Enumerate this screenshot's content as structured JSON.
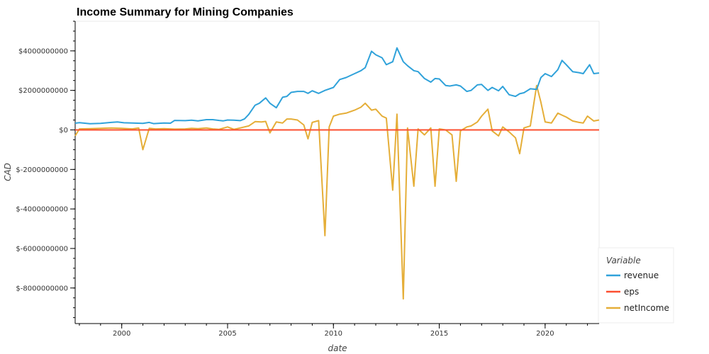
{
  "chart_data": {
    "type": "line",
    "title": "Income Summary for Mining Companies",
    "xlabel": "date",
    "ylabel": "CAD",
    "xlim": [
      1997.8,
      2022.55
    ],
    "ylim": [
      -9800000000,
      5500000000
    ],
    "x_ticks": [
      2000,
      2005,
      2010,
      2015,
      2020
    ],
    "x_tick_labels": [
      "2000",
      "2005",
      "2010",
      "2015",
      "2020"
    ],
    "y_ticks": [
      4000000000,
      2000000000,
      0,
      -2000000000,
      -4000000000,
      -6000000000,
      -8000000000
    ],
    "y_tick_labels": [
      "$4000000000",
      "$2000000000",
      "$0",
      "$-2000000000",
      "$-4000000000",
      "$-6000000000",
      "$-8000000000"
    ],
    "grid": false,
    "legend": {
      "title": "Variable",
      "position": "bottom-right"
    },
    "series": [
      {
        "name": "revenue",
        "color": "#30a2da",
        "points": [
          [
            1997.8,
            340000000
          ],
          [
            1998.0,
            370000000
          ],
          [
            1998.5,
            310000000
          ],
          [
            1999.0,
            330000000
          ],
          [
            1999.5,
            380000000
          ],
          [
            1999.8,
            400000000
          ],
          [
            2000.1,
            360000000
          ],
          [
            2000.5,
            350000000
          ],
          [
            2001.0,
            330000000
          ],
          [
            2001.3,
            380000000
          ],
          [
            2001.5,
            320000000
          ],
          [
            2002.0,
            350000000
          ],
          [
            2002.3,
            340000000
          ],
          [
            2002.5,
            480000000
          ],
          [
            2003.0,
            470000000
          ],
          [
            2003.3,
            490000000
          ],
          [
            2003.6,
            460000000
          ],
          [
            2004.0,
            520000000
          ],
          [
            2004.3,
            520000000
          ],
          [
            2004.6,
            480000000
          ],
          [
            2004.8,
            460000000
          ],
          [
            2005.0,
            500000000
          ],
          [
            2005.3,
            490000000
          ],
          [
            2005.6,
            470000000
          ],
          [
            2005.8,
            560000000
          ],
          [
            2006.0,
            780000000
          ],
          [
            2006.3,
            1250000000
          ],
          [
            2006.5,
            1350000000
          ],
          [
            2006.8,
            1620000000
          ],
          [
            2007.0,
            1350000000
          ],
          [
            2007.3,
            1120000000
          ],
          [
            2007.6,
            1650000000
          ],
          [
            2007.8,
            1700000000
          ],
          [
            2008.0,
            1900000000
          ],
          [
            2008.3,
            1950000000
          ],
          [
            2008.6,
            1950000000
          ],
          [
            2008.8,
            1850000000
          ],
          [
            2009.0,
            1980000000
          ],
          [
            2009.3,
            1850000000
          ],
          [
            2009.6,
            2000000000
          ],
          [
            2010.0,
            2150000000
          ],
          [
            2010.3,
            2550000000
          ],
          [
            2010.6,
            2650000000
          ],
          [
            2011.0,
            2850000000
          ],
          [
            2011.3,
            3000000000
          ],
          [
            2011.5,
            3150000000
          ],
          [
            2011.8,
            3980000000
          ],
          [
            2012.0,
            3800000000
          ],
          [
            2012.3,
            3650000000
          ],
          [
            2012.5,
            3300000000
          ],
          [
            2012.8,
            3450000000
          ],
          [
            2013.0,
            4150000000
          ],
          [
            2013.3,
            3450000000
          ],
          [
            2013.5,
            3250000000
          ],
          [
            2013.8,
            3000000000
          ],
          [
            2014.0,
            2950000000
          ],
          [
            2014.3,
            2600000000
          ],
          [
            2014.6,
            2420000000
          ],
          [
            2014.8,
            2600000000
          ],
          [
            2015.0,
            2580000000
          ],
          [
            2015.3,
            2250000000
          ],
          [
            2015.5,
            2220000000
          ],
          [
            2015.8,
            2280000000
          ],
          [
            2016.0,
            2220000000
          ],
          [
            2016.3,
            1950000000
          ],
          [
            2016.5,
            2000000000
          ],
          [
            2016.8,
            2280000000
          ],
          [
            2017.0,
            2300000000
          ],
          [
            2017.3,
            2000000000
          ],
          [
            2017.5,
            2150000000
          ],
          [
            2017.8,
            1980000000
          ],
          [
            2018.0,
            2200000000
          ],
          [
            2018.3,
            1780000000
          ],
          [
            2018.6,
            1700000000
          ],
          [
            2018.8,
            1830000000
          ],
          [
            2019.0,
            1880000000
          ],
          [
            2019.3,
            2080000000
          ],
          [
            2019.6,
            2050000000
          ],
          [
            2019.8,
            2650000000
          ],
          [
            2020.0,
            2850000000
          ],
          [
            2020.3,
            2700000000
          ],
          [
            2020.6,
            3050000000
          ],
          [
            2020.8,
            3520000000
          ],
          [
            2021.0,
            3300000000
          ],
          [
            2021.3,
            2950000000
          ],
          [
            2021.6,
            2900000000
          ],
          [
            2021.8,
            2850000000
          ],
          [
            2022.1,
            3300000000
          ],
          [
            2022.3,
            2850000000
          ],
          [
            2022.55,
            2880000000
          ]
        ]
      },
      {
        "name": "eps",
        "color": "#fc4f30",
        "points": [
          [
            1997.8,
            0
          ],
          [
            2022.55,
            0
          ]
        ]
      },
      {
        "name": "netIncome",
        "color": "#e5ae38",
        "points": [
          [
            1997.8,
            -300000000
          ],
          [
            1998.0,
            50000000
          ],
          [
            1998.5,
            60000000
          ],
          [
            1999.0,
            80000000
          ],
          [
            1999.5,
            100000000
          ],
          [
            2000.0,
            80000000
          ],
          [
            2000.5,
            50000000
          ],
          [
            2000.8,
            100000000
          ],
          [
            2001.0,
            -1000000000
          ],
          [
            2001.3,
            80000000
          ],
          [
            2001.6,
            50000000
          ],
          [
            2002.0,
            60000000
          ],
          [
            2002.5,
            40000000
          ],
          [
            2003.0,
            50000000
          ],
          [
            2003.3,
            80000000
          ],
          [
            2003.6,
            60000000
          ],
          [
            2004.0,
            100000000
          ],
          [
            2004.3,
            50000000
          ],
          [
            2004.6,
            30000000
          ],
          [
            2005.0,
            150000000
          ],
          [
            2005.3,
            30000000
          ],
          [
            2005.6,
            100000000
          ],
          [
            2006.0,
            200000000
          ],
          [
            2006.3,
            420000000
          ],
          [
            2006.6,
            400000000
          ],
          [
            2006.8,
            430000000
          ],
          [
            2007.0,
            -150000000
          ],
          [
            2007.3,
            400000000
          ],
          [
            2007.6,
            350000000
          ],
          [
            2007.8,
            550000000
          ],
          [
            2008.0,
            550000000
          ],
          [
            2008.3,
            500000000
          ],
          [
            2008.6,
            250000000
          ],
          [
            2008.8,
            -450000000
          ],
          [
            2009.0,
            380000000
          ],
          [
            2009.3,
            470000000
          ],
          [
            2009.6,
            -5350000000
          ],
          [
            2009.8,
            150000000
          ],
          [
            2010.0,
            700000000
          ],
          [
            2010.3,
            800000000
          ],
          [
            2010.6,
            850000000
          ],
          [
            2011.0,
            1000000000
          ],
          [
            2011.3,
            1150000000
          ],
          [
            2011.5,
            1350000000
          ],
          [
            2011.8,
            1000000000
          ],
          [
            2012.0,
            1050000000
          ],
          [
            2012.3,
            700000000
          ],
          [
            2012.5,
            600000000
          ],
          [
            2012.8,
            -3050000000
          ],
          [
            2013.0,
            800000000
          ],
          [
            2013.3,
            -8550000000
          ],
          [
            2013.5,
            100000000
          ],
          [
            2013.8,
            -2850000000
          ],
          [
            2014.0,
            50000000
          ],
          [
            2014.3,
            -250000000
          ],
          [
            2014.6,
            100000000
          ],
          [
            2014.8,
            -2850000000
          ],
          [
            2015.0,
            50000000
          ],
          [
            2015.3,
            0
          ],
          [
            2015.6,
            -250000000
          ],
          [
            2015.8,
            -2600000000
          ],
          [
            2016.0,
            -50000000
          ],
          [
            2016.3,
            150000000
          ],
          [
            2016.5,
            200000000
          ],
          [
            2016.8,
            400000000
          ],
          [
            2017.0,
            700000000
          ],
          [
            2017.3,
            1050000000
          ],
          [
            2017.5,
            -50000000
          ],
          [
            2017.8,
            -300000000
          ],
          [
            2018.0,
            150000000
          ],
          [
            2018.3,
            -100000000
          ],
          [
            2018.6,
            -400000000
          ],
          [
            2018.8,
            -1200000000
          ],
          [
            2019.0,
            100000000
          ],
          [
            2019.3,
            200000000
          ],
          [
            2019.6,
            2250000000
          ],
          [
            2019.8,
            1400000000
          ],
          [
            2020.0,
            400000000
          ],
          [
            2020.3,
            350000000
          ],
          [
            2020.6,
            850000000
          ],
          [
            2020.8,
            750000000
          ],
          [
            2021.0,
            650000000
          ],
          [
            2021.3,
            450000000
          ],
          [
            2021.6,
            380000000
          ],
          [
            2021.8,
            350000000
          ],
          [
            2022.0,
            700000000
          ],
          [
            2022.3,
            450000000
          ],
          [
            2022.55,
            500000000
          ]
        ]
      }
    ]
  }
}
